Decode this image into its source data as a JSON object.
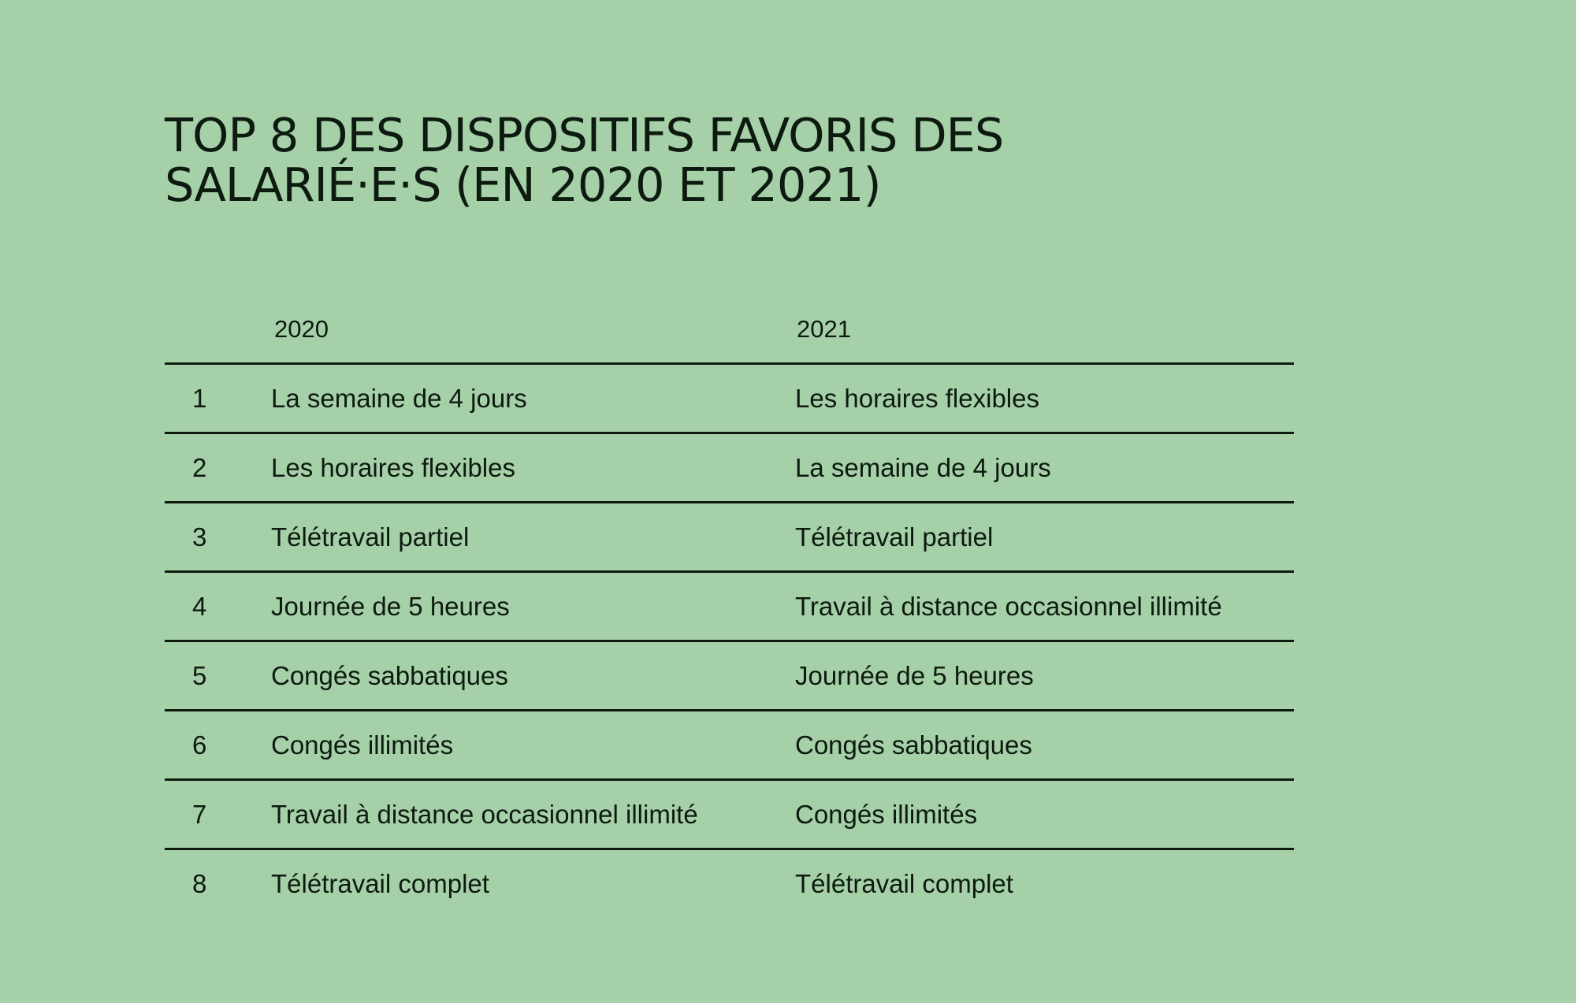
{
  "chart_data": {
    "type": "table",
    "title_lines": [
      "TOP 8 DES DISPOSITIFS FAVORIS DES",
      "SALARIÉ·E·S (EN 2020 ET 2021)"
    ],
    "columns": [
      "",
      "2020",
      "2021"
    ],
    "rows": [
      [
        "1",
        "La semaine de 4 jours",
        "Les horaires flexibles"
      ],
      [
        "2",
        "Les horaires flexibles",
        "La semaine de 4 jours"
      ],
      [
        "3",
        "Télétravail partiel",
        "Télétravail partiel"
      ],
      [
        "4",
        "Journée de 5 heures",
        "Travail à distance occasionnel illimité"
      ],
      [
        "5",
        "Congés sabbatiques",
        "Journée de 5 heures"
      ],
      [
        "6",
        "Congés illimités",
        "Congés sabbatiques"
      ],
      [
        "7",
        "Travail à distance occasionnel illimité",
        "Congés illimités"
      ],
      [
        "8",
        "Télétravail complet",
        "Télétravail complet"
      ]
    ]
  },
  "colors": {
    "background": "#a6d0a8",
    "text": "#0d1a10",
    "rule": "#0d1a10"
  }
}
